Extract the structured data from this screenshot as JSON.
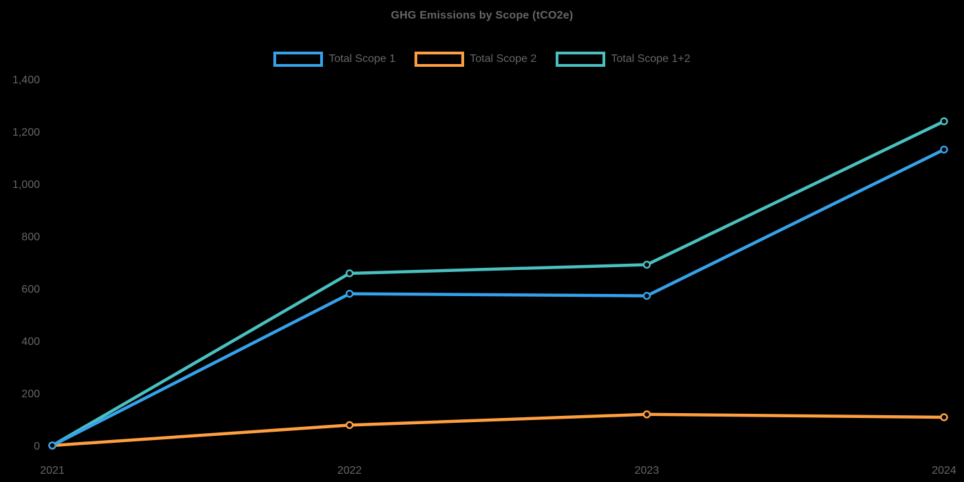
{
  "title": "GHG Emissions by Scope (tCO2e)",
  "colors": {
    "background": "#000000",
    "text": "#666666",
    "scope1": "#36A2EB",
    "scope2": "#FF9F40",
    "scope12": "#4BC0C0"
  },
  "legend": {
    "items": [
      "Total Scope 1",
      "Total Scope 2",
      "Total Scope 1+2"
    ]
  },
  "chart_data": {
    "type": "line",
    "title": "GHG Emissions by Scope (tCO2e)",
    "x": [
      "2021",
      "2022",
      "2023",
      "2024"
    ],
    "series": [
      {
        "name": "Total Scope 1",
        "color": "#36A2EB",
        "values": [
          0,
          580,
          572,
          1131
        ]
      },
      {
        "name": "Total Scope 2",
        "color": "#FF9F40",
        "values": [
          0,
          78,
          119,
          108
        ]
      },
      {
        "name": "Total Scope 1+2",
        "color": "#4BC0C0",
        "values": [
          0,
          658,
          691,
          1239
        ]
      }
    ],
    "ylim": [
      0,
      1400
    ],
    "yticks": [
      0,
      200,
      400,
      600,
      800,
      1000,
      1200,
      1400
    ],
    "ytick_labels": [
      "0",
      "200",
      "400",
      "600",
      "800",
      "1,000",
      "1,200",
      "1,400"
    ],
    "xlabel": "",
    "ylabel": "",
    "grid": false,
    "legend_position": "top",
    "point_style": "hollow-circle"
  }
}
